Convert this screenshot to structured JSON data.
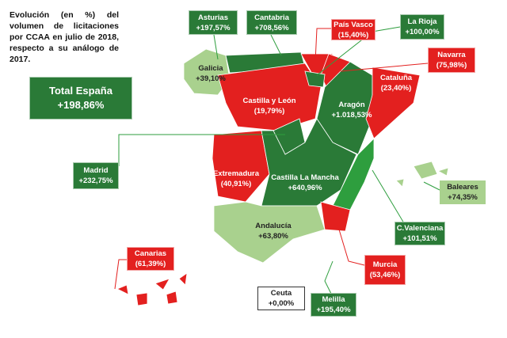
{
  "title": "Evolución (en %) del volumen de licitaciones por CCAA en julio de 2018, respecto a su análogo de 2017.",
  "total": {
    "name": "Total España",
    "value": "+198,86%",
    "color": "#2a7a37"
  },
  "regions": [
    {
      "name": "Asturias",
      "value": "+197,57%",
      "color": "#2a7a37"
    },
    {
      "name": "Cantabria",
      "value": "+708,56%",
      "color": "#2a7a37"
    },
    {
      "name": "País Vasco",
      "value": "(15,40%)",
      "color": "#e3201f"
    },
    {
      "name": "La Rioja",
      "value": "+100,00%",
      "color": "#2a7a37"
    },
    {
      "name": "Navarra",
      "value": "(75,98%)",
      "color": "#e3201f"
    },
    {
      "name": "Galicia",
      "value": "+39,10%",
      "color": "#a9d18e"
    },
    {
      "name": "Castilla y León",
      "value": "(19,79%)",
      "color": "#e3201f"
    },
    {
      "name": "Aragón",
      "value": "+1.018,53%",
      "color": "#2a7a37"
    },
    {
      "name": "Cataluña",
      "value": "(23,40%)",
      "color": "#e3201f"
    },
    {
      "name": "Madrid",
      "value": "+232,75%",
      "color": "#2a7a37"
    },
    {
      "name": "Extremadura",
      "value": "(40,91%)",
      "color": "#e3201f"
    },
    {
      "name": "Castilla La Mancha",
      "value": "+640,96%",
      "color": "#2a7a37"
    },
    {
      "name": "Baleares",
      "value": "+74,35%",
      "color": "#a9d18e"
    },
    {
      "name": "Andalucía",
      "value": "+63,80%",
      "color": "#a9d18e"
    },
    {
      "name": "C.Valenciana",
      "value": "+101,51%",
      "color": "#2a7a37"
    },
    {
      "name": "Canarias",
      "value": "(61,39%)",
      "color": "#e3201f"
    },
    {
      "name": "Murcia",
      "value": "(53,46%)",
      "color": "#e3201f"
    },
    {
      "name": "Ceuta",
      "value": "+0,00%",
      "color": "#ffffff"
    },
    {
      "name": "Melilla",
      "value": "+195,40%",
      "color": "#2a7a37"
    }
  ]
}
